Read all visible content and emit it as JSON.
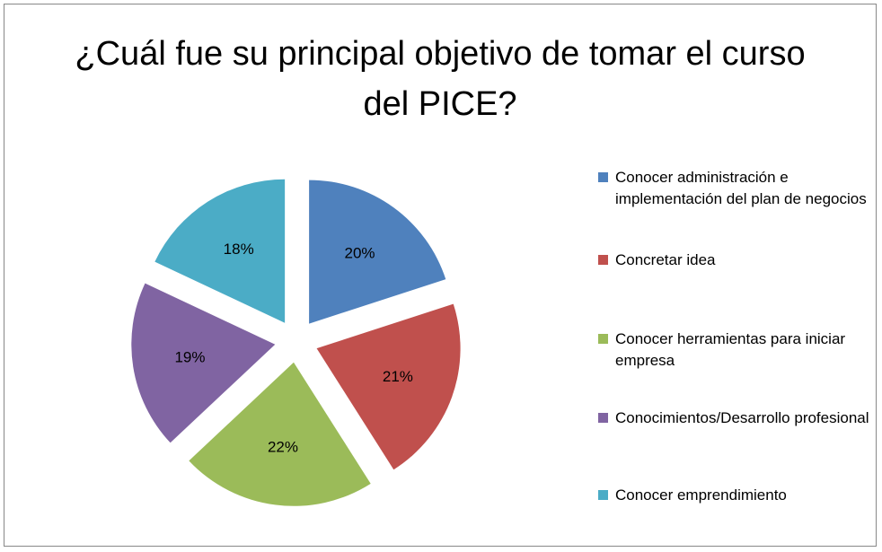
{
  "chart_data": {
    "type": "pie",
    "title": "¿Cuál fue su principal objetivo de tomar el curso del PICE?",
    "categories": [
      "Conocer administración e implementación del plan de negocios",
      "Concretar idea",
      "Conocer herramientas para iniciar empresa",
      "Conocimientos/Desarrollo profesional",
      "Conocer emprendimiento"
    ],
    "values": [
      20,
      21,
      22,
      19,
      18
    ],
    "value_labels": [
      "20%",
      "21%",
      "22%",
      "19%",
      "18%"
    ],
    "colors": [
      "#4f81bd",
      "#c0504d",
      "#9bbb59",
      "#8064a2",
      "#4bacc6"
    ],
    "legend": "right"
  }
}
